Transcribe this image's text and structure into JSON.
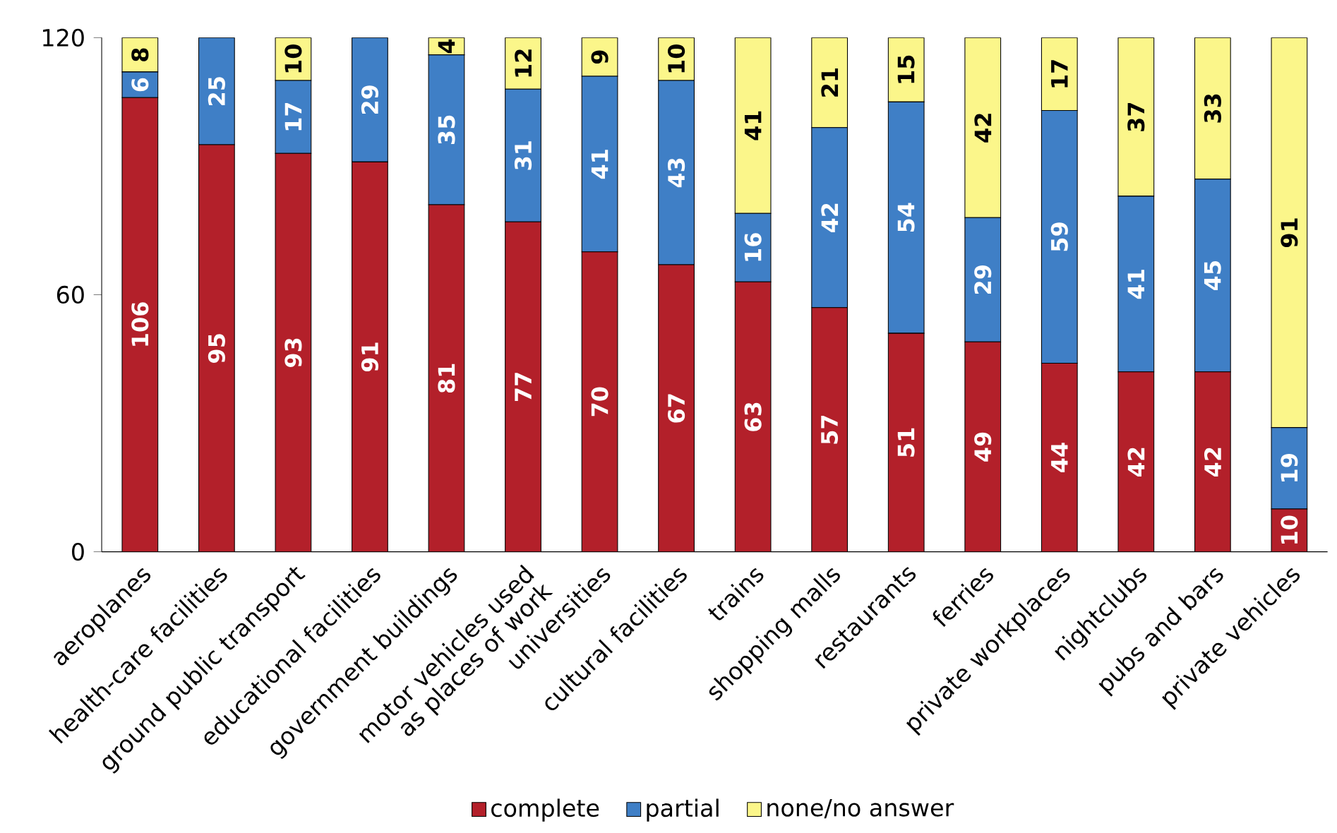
{
  "chart_data": {
    "type": "bar",
    "stacked": true,
    "categories": [
      "aeroplanes",
      "health-care facilities",
      "ground public transport",
      "educational facilities",
      "government buildings",
      "motor vehicles used as places of work",
      "universities",
      "cultural facilities",
      "trains",
      "shopping malls",
      "restaurants",
      "ferries",
      "private workplaces",
      "nightclubs",
      "pubs and bars",
      "private vehicles"
    ],
    "series": [
      {
        "name": "complete",
        "color": "#b3202a",
        "values": [
          106,
          95,
          93,
          91,
          81,
          77,
          70,
          67,
          63,
          57,
          51,
          49,
          44,
          42,
          42,
          10
        ],
        "value_labels": [
          "106",
          "95",
          "93",
          "91",
          "81",
          "77",
          "70",
          "67",
          "63",
          "57",
          "51",
          "49",
          "44",
          "42",
          "42",
          "10"
        ]
      },
      {
        "name": "partial",
        "color": "#3f7fc6",
        "values": [
          6,
          25,
          17,
          29,
          35,
          31,
          41,
          43,
          16,
          42,
          54,
          29,
          59,
          41,
          45,
          19
        ],
        "value_labels": [
          "6",
          "25",
          "17",
          "29",
          "35",
          "31",
          "41",
          "43",
          "16",
          "42",
          "54",
          "29",
          "59",
          "41",
          "45",
          "19"
        ]
      },
      {
        "name": "none/no answer",
        "color": "#fbf68a",
        "values": [
          8,
          0,
          10,
          0,
          4,
          12,
          9,
          10,
          41,
          21,
          15,
          42,
          17,
          37,
          33,
          91
        ],
        "value_labels": [
          "8",
          null,
          "10",
          null,
          "4",
          "12",
          "9",
          "10",
          "41",
          "21",
          "15",
          "42",
          "17",
          "37",
          "33",
          "91"
        ]
      }
    ],
    "ylim": [
      0,
      120
    ],
    "yticks": [
      0,
      60,
      120
    ],
    "grid": false,
    "legend": "bottom"
  }
}
